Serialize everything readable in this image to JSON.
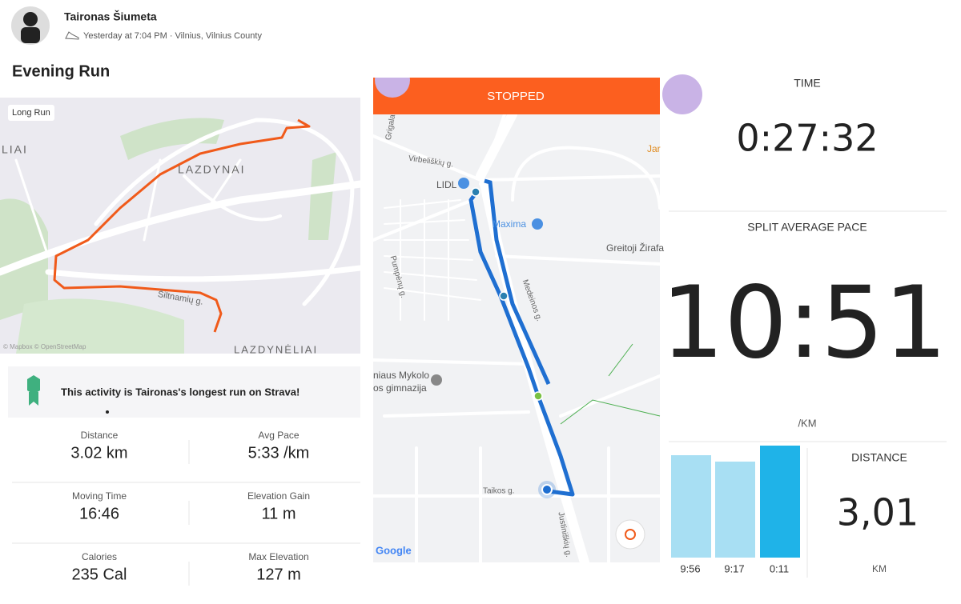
{
  "header": {
    "user": "Taironas Šiumeta",
    "meta": "Yesterday at 7:04 PM · Vilnius, Vilnius County"
  },
  "activity": {
    "title": "Evening Run",
    "tag": "Long Run",
    "map_labels": [
      "LIAI",
      "LAZDYNAI",
      "Šiltnamių g.",
      "LAZDYNĖLIAI",
      "© Mapbox © OpenStreetMap"
    ],
    "achievement": "This activity is Taironas's longest run on Strava!",
    "stats": [
      {
        "label": "Distance",
        "value": "3.02 km"
      },
      {
        "label": "Avg Pace",
        "value": "5:33 /km"
      },
      {
        "label": "Moving Time",
        "value": "16:46"
      },
      {
        "label": "Elevation Gain",
        "value": "11 m"
      },
      {
        "label": "Calories",
        "value": "235 Cal"
      },
      {
        "label": "Max Elevation",
        "value": "127 m"
      }
    ]
  },
  "tracker": {
    "status": "STOPPED",
    "map_labels": [
      "Grigalaukio g.",
      "Virbeliškių g.",
      "LIDL",
      "Maxima",
      "Greitoji Žirafa",
      "Pumpėnų g.",
      "Medeinos g.",
      "niaus Mykolo",
      "os gimnazija",
      "Taikos g.",
      "Justiniškių g.",
      "Google",
      "Jar"
    ]
  },
  "summary": {
    "time_label": "TIME",
    "time": "0:27:32",
    "pace_label": "SPLIT AVERAGE PACE",
    "pace": "10:51",
    "pace_unit": "/KM",
    "distance_label": "DISTANCE",
    "distance": "3,01",
    "distance_unit": "KM",
    "splits": [
      "9:56",
      "9:17",
      "0:11"
    ]
  }
}
